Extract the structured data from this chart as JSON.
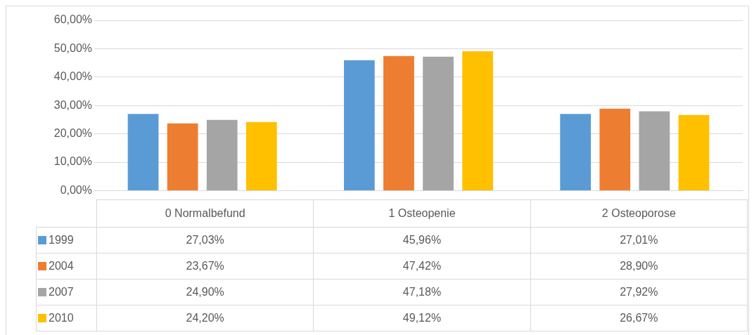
{
  "chart_data": {
    "type": "bar",
    "categories": [
      "0 Normalbefund",
      "1 Osteopenie",
      "2 Osteoporose"
    ],
    "series": [
      {
        "name": "1999",
        "color": "#5b9bd5",
        "values": [
          27.03,
          45.96,
          27.01
        ],
        "value_labels": [
          "27,03%",
          "45,96%",
          "27,01%"
        ]
      },
      {
        "name": "2004",
        "color": "#ed7d31",
        "values": [
          23.67,
          47.42,
          28.9
        ],
        "value_labels": [
          "23,67%",
          "47,42%",
          "28,90%"
        ]
      },
      {
        "name": "2007",
        "color": "#a5a5a5",
        "values": [
          24.9,
          47.18,
          27.92
        ],
        "value_labels": [
          "24,90%",
          "47,18%",
          "27,92%"
        ]
      },
      {
        "name": "2010",
        "color": "#ffc000",
        "values": [
          24.2,
          49.12,
          26.67
        ],
        "value_labels": [
          "24,20%",
          "49,12%",
          "26,67%"
        ]
      }
    ],
    "ylim": [
      0,
      60
    ],
    "yticks": [
      {
        "value": 0,
        "label": "0,00%"
      },
      {
        "value": 10,
        "label": "10,00%"
      },
      {
        "value": 20,
        "label": "20,00%"
      },
      {
        "value": 30,
        "label": "30,00%"
      },
      {
        "value": 40,
        "label": "40,00%"
      },
      {
        "value": 50,
        "label": "50,00%"
      },
      {
        "value": 60,
        "label": "60,00%"
      }
    ],
    "grid": "y",
    "legend": "bottom"
  }
}
